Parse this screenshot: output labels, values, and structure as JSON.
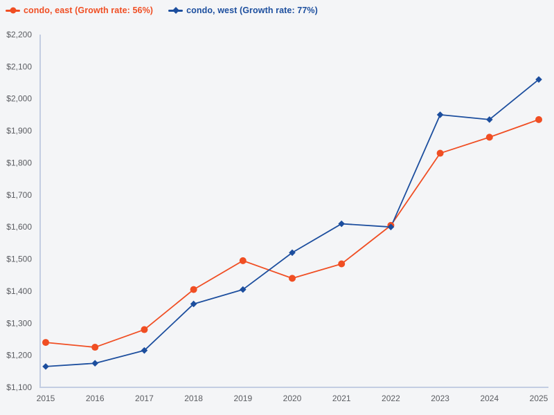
{
  "page": {
    "background_color": "#f4f5f7",
    "axis_color": "#c3cde2",
    "tick_label_color": "#5a5c61"
  },
  "legend": {
    "position": "top-left",
    "items": [
      {
        "label": "condo, east (Growth rate: 56%)",
        "color": "#f04e23",
        "marker": "circle"
      },
      {
        "label": "condo, west (Growth rate: 77%)",
        "color": "#1c4e9e",
        "marker": "diamond"
      }
    ]
  },
  "chart_data": {
    "type": "line",
    "title": "",
    "xlabel": "",
    "ylabel": "",
    "x": [
      2015,
      2016,
      2017,
      2018,
      2019,
      2020,
      2021,
      2022,
      2023,
      2024,
      2025
    ],
    "series": [
      {
        "name": "condo, east (Growth rate: 56%)",
        "growth_rate": "56%",
        "color": "#f04e23",
        "marker": "circle",
        "values": [
          1240,
          1225,
          1280,
          1405,
          1495,
          1440,
          1485,
          1605,
          1830,
          1880,
          1935
        ]
      },
      {
        "name": "condo, west (Growth rate: 77%)",
        "growth_rate": "77%",
        "color": "#1c4e9e",
        "marker": "diamond",
        "values": [
          1165,
          1175,
          1215,
          1360,
          1405,
          1520,
          1610,
          1600,
          1950,
          1935,
          2060
        ]
      }
    ],
    "ylim": [
      1100,
      2200
    ],
    "ytick_step": 100,
    "ytick_prefix": "$",
    "ytick_labels": [
      "$1,100",
      "$1,200",
      "$1,300",
      "$1,400",
      "$1,500",
      "$1,600",
      "$1,700",
      "$1,800",
      "$1,900",
      "$2,000",
      "$2,100",
      "$2,200"
    ],
    "grid": false,
    "legend_position": "top-left"
  }
}
